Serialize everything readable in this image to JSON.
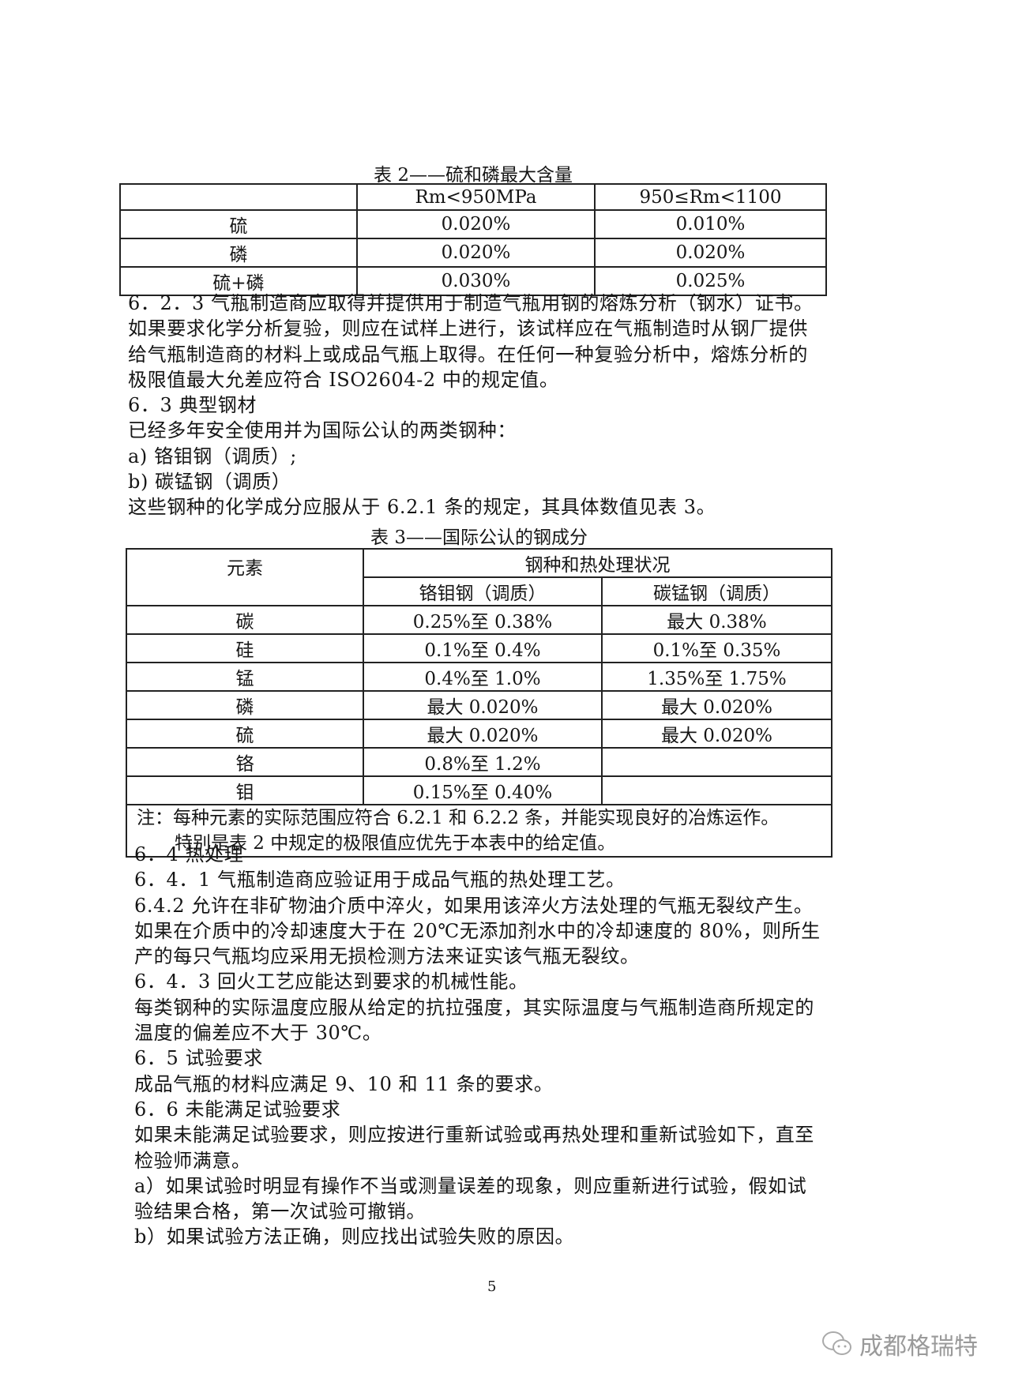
{
  "table2": {
    "caption": "表 2——硫和磷最大含量",
    "headers": [
      "",
      "Rm<950MPa",
      "950≤Rm<1100"
    ],
    "rows": [
      [
        "硫",
        "0.020%",
        "0.010%"
      ],
      [
        "磷",
        "0.020%",
        "0.020%"
      ],
      [
        "硫+磷",
        "0.030%",
        "0.025%"
      ]
    ]
  },
  "block1": [
    "6．2．3 气瓶制造商应取得并提供用于制造气瓶用钢的熔炼分析（钢水）证书。",
    "如果要求化学分析复验，则应在试样上进行，该试样应在气瓶制造时从钢厂提供",
    "给气瓶制造商的材料上或成品气瓶上取得。在任何一种复验分析中，熔炼分析的",
    "极限值最大允差应符合 ISO2604-2 中的规定值。",
    "6．3 典型钢材",
    "已经多年安全使用并为国际公认的两类钢种：",
    "a) 铬钼钢（调质）;",
    "b) 碳锰钢（调质）",
    "这些钢种的化学成分应服从于 6.2.1 条的规定，其具体数值见表 3。"
  ],
  "table3": {
    "caption": "表 3——国际公认的钢成分",
    "header_element": "元素",
    "header_group": "钢种和热处理状况",
    "header_cols": [
      "铬钼钢（调质）",
      "碳锰钢（调质）"
    ],
    "rows": [
      [
        "碳",
        "0.25%至 0.38%",
        "最大 0.38%"
      ],
      [
        "硅",
        "0.1%至 0.4%",
        "0.1%至 0.35%"
      ],
      [
        "锰",
        "0.4%至 1.0%",
        "1.35%至 1.75%"
      ],
      [
        "磷",
        "最大 0.020%",
        "最大 0.020%"
      ],
      [
        "硫",
        "最大 0.020%",
        "最大 0.020%"
      ],
      [
        "铬",
        "0.8%至 1.2%",
        ""
      ],
      [
        "钼",
        "0.15%至 0.40%",
        ""
      ]
    ],
    "note_line1": "注：每种元素的实际范围应符合 6.2.1 和 6.2.2 条，并能实现良好的冶炼运作。",
    "note_line2": "特别是表 2 中规定的极限值应优先于本表中的给定值。"
  },
  "block2": [
    "6．4 热处理",
    "6．4．1 气瓶制造商应验证用于成品气瓶的热处理工艺。",
    "6.4.2 允许在非矿物油介质中淬火，如果用该淬火方法处理的气瓶无裂纹产生。",
    "如果在介质中的冷却速度大于在 20℃无添加剂水中的冷却速度的 80%，则所生",
    "产的每只气瓶均应采用无损检测方法来证实该气瓶无裂纹。",
    "6．4．3 回火工艺应能达到要求的机械性能。",
    "每类钢种的实际温度应服从给定的抗拉强度，其实际温度与气瓶制造商所规定的",
    "温度的偏差应不大于 30℃。",
    "6．5 试验要求",
    "成品气瓶的材料应满足 9、10 和 11 条的要求。",
    "6．6 未能满足试验要求",
    "如果未能满足试验要求，则应按进行重新试验或再热处理和重新试验如下，直至",
    "检验师满意。",
    "a）如果试验时明显有操作不当或测量误差的现象，则应重新进行试验，假如试",
    "验结果合格，第一次试验可撤销。",
    "b）如果试验方法正确，则应找出试验失败的原因。"
  ],
  "page_number": "5",
  "watermark": {
    "text": "成都格瑞特",
    "icon": "wechat-icon"
  }
}
